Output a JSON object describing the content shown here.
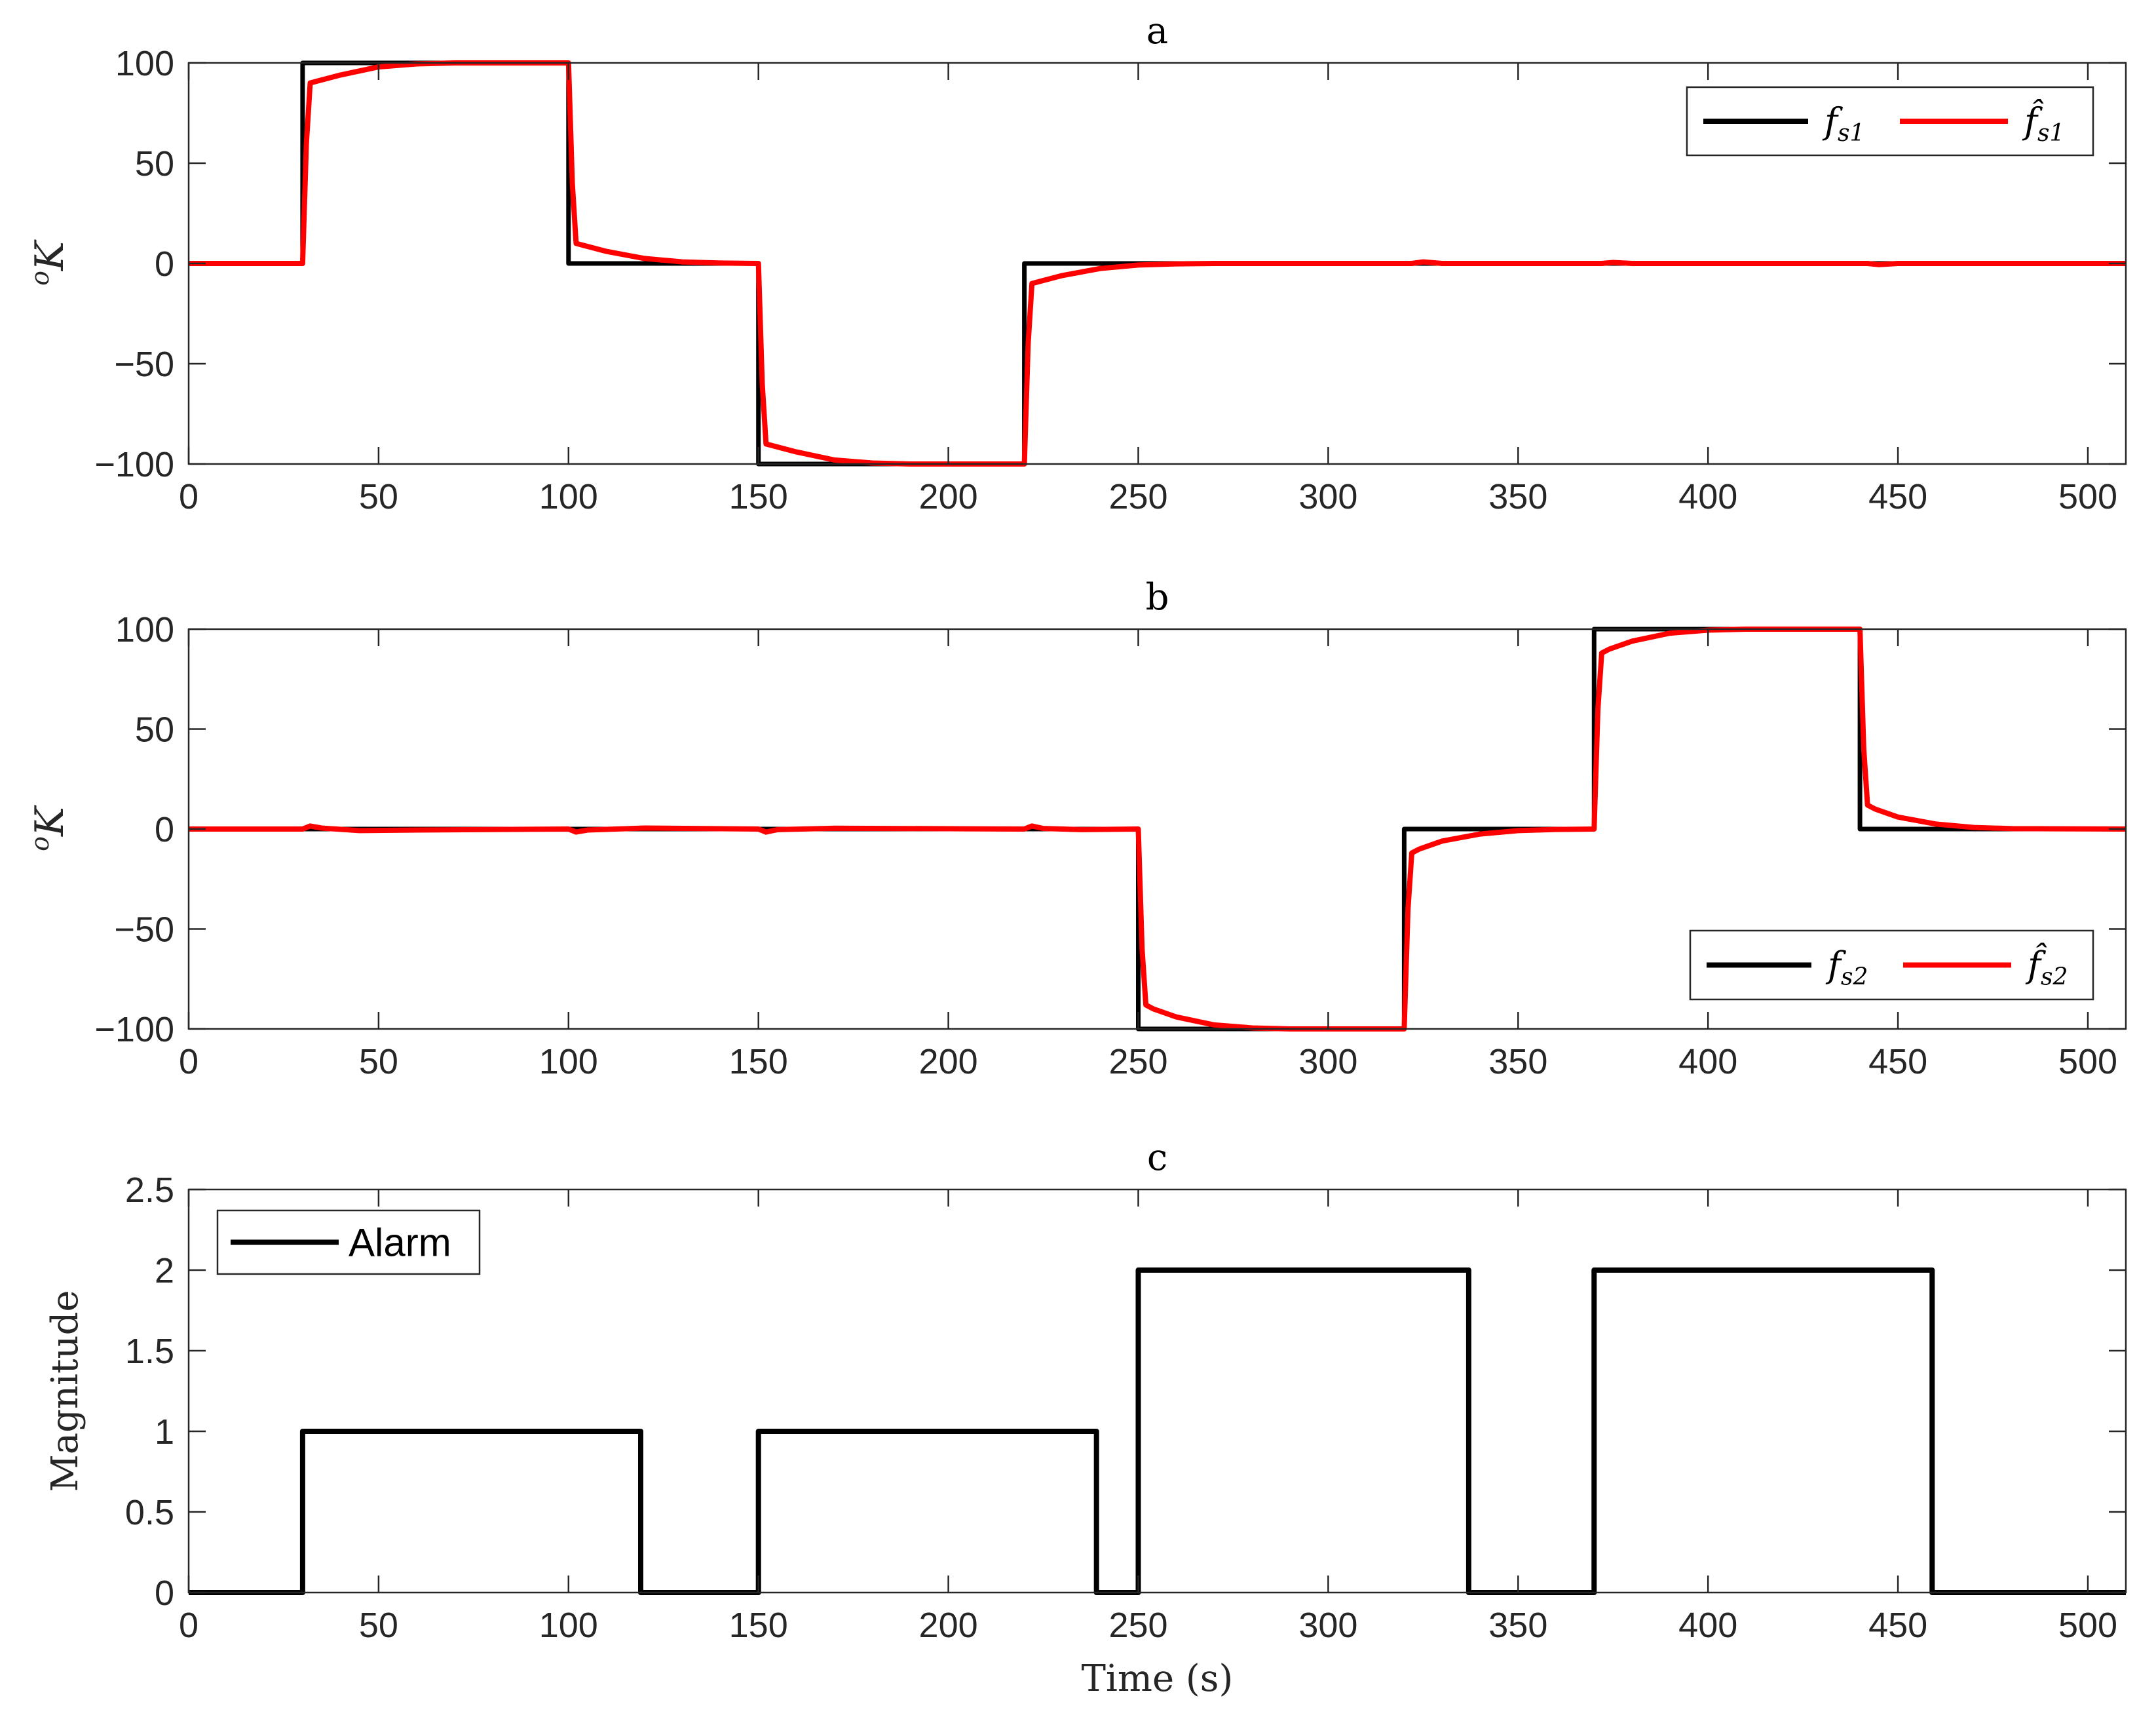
{
  "chart_data": [
    {
      "type": "line",
      "title": "a",
      "xlabel": "",
      "ylabel": "oK",
      "ylabel_superscript": "o",
      "ylabel_main": "K",
      "xlim": [
        0,
        510
      ],
      "ylim": [
        -100,
        100
      ],
      "xticks": [
        0,
        50,
        100,
        150,
        200,
        250,
        300,
        350,
        400,
        450,
        500
      ],
      "xtick_labels": [
        "0",
        "50",
        "100",
        "150",
        "200",
        "250",
        "300",
        "350",
        "400",
        "450",
        "500"
      ],
      "yticks": [
        -100,
        -50,
        0,
        50,
        100
      ],
      "ytick_labels": [
        "−100",
        "−50",
        "0",
        "50",
        "100"
      ],
      "legend_position": "top-right",
      "series": [
        {
          "name": "fs1",
          "legend_main": "f",
          "legend_sub": "s1",
          "color": "#000000",
          "x": [
            0,
            30,
            30,
            100,
            100,
            150,
            150,
            220,
            220,
            510
          ],
          "y": [
            0,
            0,
            100,
            100,
            0,
            0,
            -100,
            -100,
            0,
            0
          ]
        },
        {
          "name": "f̂s1",
          "legend_main": "f̂",
          "legend_sub": "s1",
          "color": "#ff0000",
          "x": [
            0,
            30,
            31,
            32,
            34,
            40,
            50,
            60,
            70,
            80,
            90,
            100,
            101,
            102,
            104,
            110,
            120,
            130,
            140,
            150,
            151,
            152,
            154,
            160,
            170,
            180,
            190,
            200,
            210,
            220,
            221,
            222,
            224,
            230,
            240,
            250,
            260,
            270,
            280,
            322,
            325,
            330,
            372,
            375,
            380,
            442,
            445,
            450,
            510
          ],
          "y": [
            0,
            0,
            60,
            90,
            91,
            94,
            98,
            99.5,
            100,
            100,
            100,
            100,
            40,
            10,
            9,
            6,
            2.5,
            0.8,
            0.2,
            0,
            -60,
            -90,
            -91,
            -94,
            -98,
            -99.5,
            -100,
            -100,
            -100,
            -100,
            -40,
            -10,
            -9,
            -6,
            -2.5,
            -0.8,
            -0.2,
            0,
            0,
            0,
            0.8,
            0,
            0,
            0.5,
            0,
            0,
            -0.6,
            0,
            0
          ]
        }
      ]
    },
    {
      "type": "line",
      "title": "b",
      "xlabel": "",
      "ylabel": "oK",
      "ylabel_superscript": "o",
      "ylabel_main": "K",
      "xlim": [
        0,
        510
      ],
      "ylim": [
        -100,
        100
      ],
      "xticks": [
        0,
        50,
        100,
        150,
        200,
        250,
        300,
        350,
        400,
        450,
        500
      ],
      "xtick_labels": [
        "0",
        "50",
        "100",
        "150",
        "200",
        "250",
        "300",
        "350",
        "400",
        "450",
        "500"
      ],
      "yticks": [
        -100,
        -50,
        0,
        50,
        100
      ],
      "ytick_labels": [
        "−100",
        "−50",
        "0",
        "50",
        "100"
      ],
      "legend_position": "bottom-right",
      "series": [
        {
          "name": "fs2",
          "legend_main": "f",
          "legend_sub": "s2",
          "color": "#000000",
          "x": [
            0,
            250,
            250,
            320,
            320,
            370,
            370,
            440,
            440,
            510
          ],
          "y": [
            0,
            0,
            -100,
            -100,
            0,
            0,
            100,
            100,
            0,
            0
          ]
        },
        {
          "name": "f̂s2",
          "legend_main": "f̂",
          "legend_sub": "s2",
          "color": "#ff0000",
          "x": [
            0,
            30,
            32,
            35,
            45,
            60,
            100,
            102,
            105,
            120,
            150,
            152,
            155,
            170,
            220,
            222,
            225,
            235,
            250,
            251,
            252,
            254,
            260,
            270,
            280,
            290,
            300,
            310,
            320,
            321,
            322,
            324,
            330,
            340,
            350,
            360,
            370,
            371,
            372,
            374,
            380,
            390,
            400,
            410,
            420,
            430,
            440,
            441,
            442,
            444,
            450,
            460,
            470,
            480,
            510
          ],
          "y": [
            0,
            0,
            1.5,
            0.5,
            -0.8,
            -0.5,
            0,
            -1.5,
            -0.5,
            0.5,
            0,
            -1.5,
            -0.3,
            0.4,
            0,
            1.5,
            0.3,
            -0.3,
            0,
            -60,
            -88,
            -90,
            -94,
            -98,
            -99.5,
            -100,
            -100,
            -100,
            -100,
            -40,
            -12,
            -10,
            -6,
            -2.5,
            -0.8,
            -0.2,
            0,
            60,
            88,
            90,
            94,
            98,
            99.5,
            100,
            100,
            100,
            100,
            40,
            12,
            10,
            6,
            2.5,
            0.8,
            0.2,
            0
          ]
        }
      ]
    },
    {
      "type": "line",
      "title": "c",
      "xlabel": "Time (s)",
      "ylabel": "Magnitude",
      "xlim": [
        0,
        510
      ],
      "ylim": [
        0,
        2.5
      ],
      "xticks": [
        0,
        50,
        100,
        150,
        200,
        250,
        300,
        350,
        400,
        450,
        500
      ],
      "xtick_labels": [
        "0",
        "50",
        "100",
        "150",
        "200",
        "250",
        "300",
        "350",
        "400",
        "450",
        "500"
      ],
      "yticks": [
        0,
        0.5,
        1,
        1.5,
        2,
        2.5
      ],
      "ytick_labels": [
        "0",
        "0.5",
        "1",
        "1.5",
        "2",
        "2.5"
      ],
      "legend_position": "top-left",
      "series": [
        {
          "name": "Alarm",
          "color": "#000000",
          "x": [
            0,
            30,
            30,
            119,
            119,
            150,
            150,
            239,
            239,
            250,
            250,
            337,
            337,
            370,
            370,
            459,
            459,
            510
          ],
          "y": [
            0,
            0,
            1,
            1,
            0,
            0,
            1,
            1,
            0,
            0,
            2,
            2,
            0,
            0,
            2,
            2,
            0,
            0
          ]
        }
      ]
    }
  ]
}
